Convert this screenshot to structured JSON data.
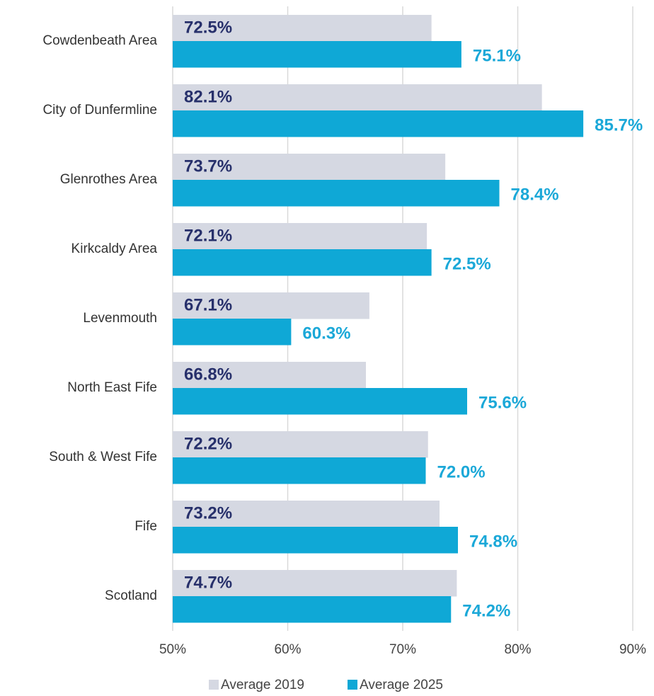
{
  "chart_data": {
    "type": "bar",
    "orientation": "horizontal",
    "categories": [
      "Cowdenbeath Area",
      "City of Dunfermline",
      "Glenrothes Area",
      "Kirkcaldy Area",
      "Levenmouth",
      "North East Fife",
      "South & West Fife",
      "Fife",
      "Scotland"
    ],
    "series": [
      {
        "name": "Average 2019",
        "color": "#d5d8e2",
        "label_color": "#27306b",
        "values": [
          72.5,
          82.1,
          73.7,
          72.1,
          67.1,
          66.8,
          72.2,
          73.2,
          74.7
        ],
        "value_labels": [
          "72.5%",
          "82.1%",
          "73.7%",
          "72.1%",
          "67.1%",
          "66.8%",
          "72.2%",
          "73.2%",
          "74.7%"
        ]
      },
      {
        "name": "Average 2025",
        "color": "#0fa8d6",
        "label_color": "#1ba8d8",
        "values": [
          75.1,
          85.7,
          78.4,
          72.5,
          60.3,
          75.6,
          72.0,
          74.8,
          74.2
        ],
        "value_labels": [
          "75.1%",
          "85.7%",
          "78.4%",
          "72.5%",
          "60.3%",
          "75.6%",
          "72.0%",
          "74.8%",
          "74.2%"
        ]
      }
    ],
    "xlim": [
      50,
      90
    ],
    "xticks": [
      {
        "value": 50,
        "label": "50%"
      },
      {
        "value": 60,
        "label": "60%"
      },
      {
        "value": 70,
        "label": "70%"
      },
      {
        "value": 80,
        "label": "80%"
      },
      {
        "value": 90,
        "label": "90%"
      }
    ],
    "grid": true,
    "legend": "bottom"
  }
}
